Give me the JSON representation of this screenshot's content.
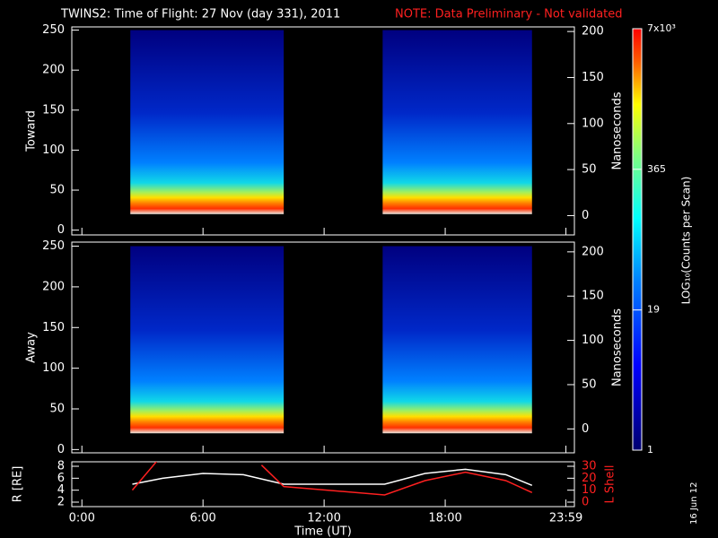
{
  "note": "NOTE: Data Preliminary - Not validated",
  "date_stamp": "16 Jun 12",
  "colorbar": {
    "label": "LOG₁₀(Counts per Scan)",
    "log": true,
    "lim": [
      1,
      7000
    ],
    "ticks": [
      1,
      19,
      365,
      {
        "value": 7000,
        "label": "7x10³"
      }
    ]
  },
  "chart_data": [
    {
      "type": "heatmap",
      "title": "TWINS2: Time of Flight: 27 Nov (day 331), 2011",
      "ylabel": "Toward",
      "y2label": "Nanoseconds",
      "ylim": [
        -6,
        254
      ],
      "yticks": [
        0,
        50,
        100,
        150,
        200,
        250
      ],
      "y2lim": [
        -21,
        205
      ],
      "y2ticks": [
        0,
        50,
        100,
        150,
        200
      ],
      "intervals": [
        [
          2.4,
          10.0
        ],
        [
          14.9,
          22.3
        ]
      ]
    },
    {
      "type": "heatmap",
      "ylabel": "Away",
      "y2label": "Nanoseconds",
      "ylim": [
        -4,
        255
      ],
      "yticks": [
        0,
        50,
        100,
        150,
        200,
        250
      ],
      "y2lim": [
        -27,
        211
      ],
      "y2ticks": [
        0,
        50,
        100,
        150,
        200
      ],
      "intervals": [
        [
          2.4,
          10.0
        ],
        [
          14.9,
          22.3
        ]
      ]
    },
    {
      "type": "line",
      "ylabel": "R [RE]",
      "y2label": "L Shell",
      "xlabel": "Time (UT)",
      "xlim": [
        -0.5,
        24.4
      ],
      "xticks": [
        {
          "value": 0,
          "label": "0:00"
        },
        {
          "value": 6,
          "label": "6:00"
        },
        {
          "value": 12,
          "label": "12:00"
        },
        {
          "value": 18,
          "label": "18:00"
        },
        {
          "value": 23.98,
          "label": "23:59"
        }
      ],
      "ylim": [
        1.25,
        8.75
      ],
      "yticks": [
        2,
        4,
        6,
        8
      ],
      "y2lim": [
        -3.75,
        33.75
      ],
      "y2ticks": [
        0,
        10,
        20,
        30
      ],
      "series": [
        {
          "color": "#ffffff",
          "x": [
            2.5,
            4,
            6,
            8,
            10,
            12,
            15,
            17,
            19,
            21,
            22.3
          ],
          "values": [
            5,
            6,
            6.8,
            6.6,
            5,
            5,
            5,
            6.8,
            7.5,
            6.6,
            4.8
          ]
        },
        {
          "color": "#ff2020",
          "axis": "y2",
          "x": [
            2.5,
            3.7,
            null,
            8.9,
            10,
            15,
            17,
            19,
            21,
            22.3
          ],
          "values": [
            10,
            34,
            null,
            31,
            13,
            6,
            18,
            25,
            18,
            8
          ]
        }
      ]
    }
  ]
}
